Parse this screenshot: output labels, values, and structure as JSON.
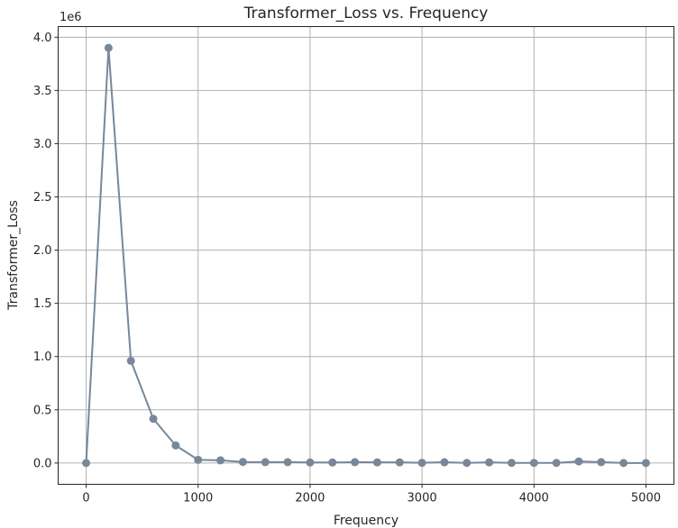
{
  "chart_data": {
    "type": "line",
    "title": "Transformer_Loss vs. Frequency",
    "xlabel": "Frequency",
    "ylabel": "Transformer_Loss",
    "y_offset_label": "1e6",
    "xlim": [
      -250,
      5250
    ],
    "ylim": [
      -200000,
      4100000
    ],
    "x_ticks": [
      0,
      1000,
      2000,
      3000,
      4000,
      5000
    ],
    "x_tick_labels": [
      "0",
      "1000",
      "2000",
      "3000",
      "4000",
      "5000"
    ],
    "y_ticks": [
      0,
      500000,
      1000000,
      1500000,
      2000000,
      2500000,
      3000000,
      3500000,
      4000000
    ],
    "y_tick_labels": [
      "0.0",
      "0.5",
      "1.0",
      "1.5",
      "2.0",
      "2.5",
      "3.0",
      "3.5",
      "4.0"
    ],
    "grid": true,
    "series": [
      {
        "color": "#778899",
        "marker": "circle",
        "x": [
          0,
          200,
          400,
          600,
          800,
          1000,
          1200,
          1400,
          1600,
          1800,
          2000,
          2200,
          2400,
          2600,
          2800,
          3000,
          3200,
          3400,
          3600,
          3800,
          4000,
          4200,
          4400,
          4600,
          4800,
          5000
        ],
        "y": [
          0,
          3900000,
          960000,
          415000,
          165000,
          30000,
          25000,
          10000,
          8000,
          8000,
          5000,
          5000,
          8000,
          6000,
          6000,
          2000,
          7000,
          1000,
          6000,
          1000,
          1000,
          1000,
          15000,
          8000,
          0,
          0
        ]
      }
    ]
  }
}
